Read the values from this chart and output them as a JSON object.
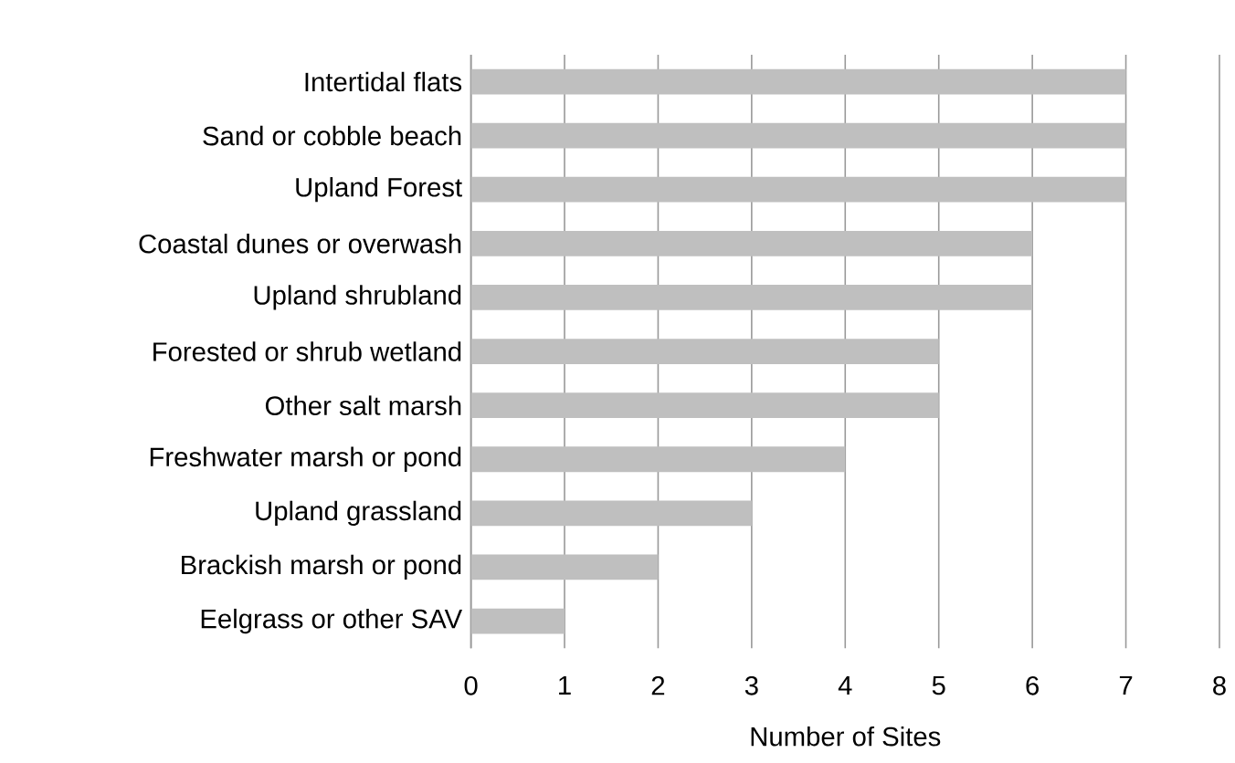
{
  "chart_data": {
    "type": "bar",
    "orientation": "horizontal",
    "xlabel": "Number of Sites",
    "categories": [
      "Intertidal flats",
      "Sand or cobble beach",
      "Upland Forest",
      "Coastal dunes or overwash",
      "Upland shrubland",
      "Forested or shrub wetland",
      "Other salt marsh",
      "Freshwater marsh or pond",
      "Upland grassland",
      "Brackish marsh or pond",
      "Eelgrass or other SAV"
    ],
    "values": [
      7,
      7,
      7,
      6,
      6,
      5,
      5,
      4,
      3,
      2,
      1
    ],
    "color": "#bfbfbf",
    "xlim": [
      0,
      8
    ],
    "xticks": [
      0,
      1,
      2,
      3,
      4,
      5,
      6,
      7,
      8
    ],
    "grid": "x"
  }
}
